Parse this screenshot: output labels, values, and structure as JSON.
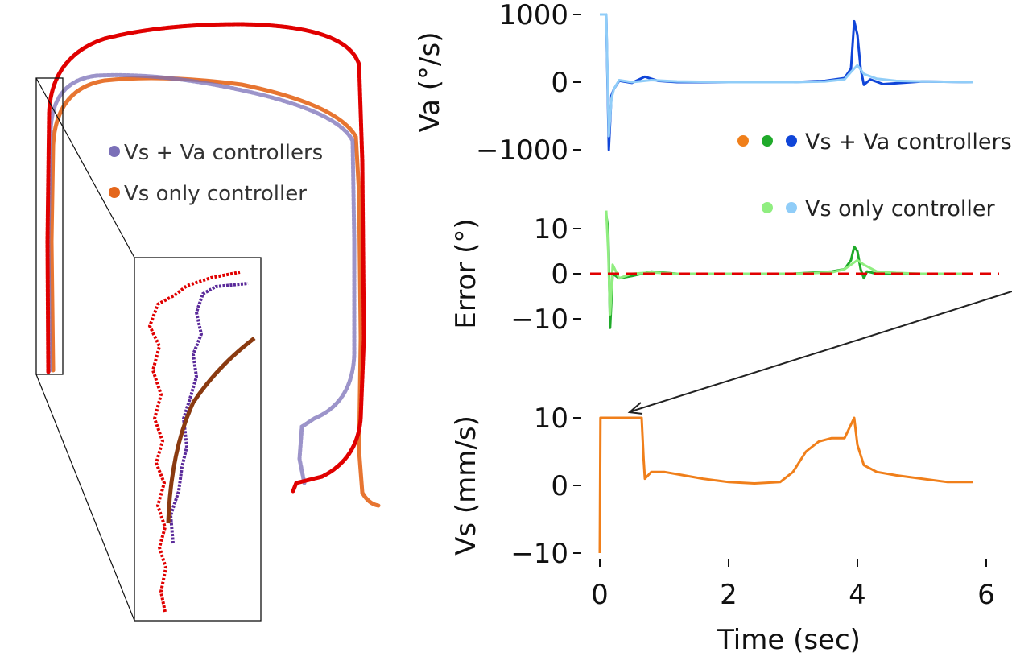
{
  "figure": {
    "left_legend": [
      {
        "label": "Vs + Va controllers",
        "color": "#7b70b8"
      },
      {
        "label": "Vs only controller",
        "color": "#e4661b"
      }
    ],
    "path_colors": {
      "vs_va": "#7b70b8",
      "vs_only": "#e4661b",
      "reference": "#e00000",
      "zoom_vs_va": "#5a2a9a",
      "zoom_vs_only": "#8a3a10"
    },
    "right_legend": [
      {
        "label": "Vs + Va controllers",
        "colors": [
          "#f07f1a",
          "#1faa2a",
          "#1045d8"
        ]
      },
      {
        "label": "Vs only controller",
        "colors": [
          "#90ee80",
          "#90cdf8"
        ]
      }
    ]
  },
  "chart_data": [
    {
      "type": "line",
      "ylabel": "Va (°/s)",
      "xlabel": "",
      "ylim": [
        -1000,
        1000
      ],
      "yticks": [
        "1000",
        "0",
        "−1000"
      ],
      "ytick_values": [
        1000,
        0,
        -1000
      ],
      "series": [
        {
          "name": "Vs + Va controllers",
          "color": "#1045d8",
          "x": [
            0,
            0.05,
            0.1,
            0.14,
            0.18,
            0.22,
            0.3,
            0.5,
            0.7,
            0.9,
            1.2,
            2.0,
            3.0,
            3.5,
            3.8,
            3.9,
            3.95,
            4.0,
            4.05,
            4.1,
            4.2,
            4.4,
            5.0,
            5.8
          ],
          "y": [
            1000,
            1000,
            1000,
            -1000,
            -200,
            -100,
            20,
            -10,
            80,
            20,
            0,
            0,
            0,
            20,
            60,
            200,
            900,
            700,
            200,
            -40,
            40,
            -30,
            10,
            0
          ]
        },
        {
          "name": "Vs only controller",
          "color": "#90cdf8",
          "x": [
            0,
            0.05,
            0.1,
            0.14,
            0.18,
            0.22,
            0.3,
            0.5,
            0.8,
            1.2,
            2.0,
            3.0,
            3.5,
            3.8,
            3.9,
            4.0,
            4.1,
            4.3,
            4.6,
            5.0,
            5.8
          ],
          "y": [
            1000,
            1000,
            1000,
            -800,
            -250,
            -100,
            30,
            0,
            30,
            10,
            0,
            0,
            10,
            40,
            150,
            250,
            120,
            50,
            20,
            10,
            0
          ]
        }
      ]
    },
    {
      "type": "line",
      "ylabel": "Error (°)",
      "xlabel": "",
      "ylim": [
        -15,
        15
      ],
      "yticks": [
        "10",
        "0",
        "−10"
      ],
      "ytick_values": [
        10,
        0,
        -10
      ],
      "series": [
        {
          "name": "Vs + Va controllers",
          "color": "#1faa2a",
          "x": [
            0.1,
            0.13,
            0.16,
            0.2,
            0.3,
            0.5,
            0.8,
            1.2,
            2.0,
            3.0,
            3.6,
            3.8,
            3.9,
            3.95,
            4.0,
            4.05,
            4.1,
            4.15,
            4.3,
            5.0
          ],
          "y": [
            13,
            10,
            -12,
            0,
            -1,
            -0.5,
            0.5,
            0,
            0,
            0,
            0.5,
            1,
            3,
            6,
            5,
            1,
            -1,
            0.5,
            0,
            0
          ]
        },
        {
          "name": "Vs only controller",
          "color": "#90ee80",
          "x": [
            0.1,
            0.13,
            0.16,
            0.2,
            0.3,
            0.5,
            0.8,
            1.2,
            2.0,
            3.0,
            3.6,
            3.8,
            3.9,
            4.0,
            4.1,
            4.3,
            4.6,
            5.0,
            5.8
          ],
          "y": [
            14,
            5,
            -9,
            2,
            -1,
            0,
            0.3,
            0,
            0,
            0,
            0.3,
            1,
            2,
            3,
            2,
            0.5,
            0.2,
            0,
            0
          ]
        },
        {
          "name": "",
          "color": "#e00000",
          "dashed": true,
          "x": [
            -0.15,
            6.2
          ],
          "y": [
            0,
            0
          ]
        }
      ]
    },
    {
      "type": "line",
      "ylabel": "Vs (mm/s)",
      "xlabel": "Time (sec)",
      "xlim": [
        0,
        6
      ],
      "xticks": [
        "0",
        "2",
        "4",
        "6"
      ],
      "xtick_values": [
        0,
        2,
        4,
        6
      ],
      "ylim": [
        -10,
        10
      ],
      "yticks": [
        "10",
        "0",
        "−10"
      ],
      "ytick_values": [
        10,
        0,
        -10
      ],
      "series": [
        {
          "name": "Vs",
          "color": "#f07f1a",
          "x": [
            0,
            0.01,
            0.02,
            0.3,
            0.65,
            0.68,
            0.7,
            0.8,
            1.0,
            1.3,
            1.6,
            2.0,
            2.4,
            2.8,
            3.0,
            3.2,
            3.4,
            3.6,
            3.8,
            3.9,
            3.95,
            4.0,
            4.1,
            4.3,
            4.6,
            5.0,
            5.4,
            5.8
          ],
          "y": [
            -10,
            10,
            10,
            10,
            10,
            4,
            1,
            2,
            2,
            1.5,
            1,
            0.5,
            0.3,
            0.5,
            2,
            5,
            6.5,
            7,
            7,
            9,
            10,
            6,
            3,
            2,
            1.5,
            1,
            0.5,
            0.5
          ]
        }
      ]
    }
  ]
}
